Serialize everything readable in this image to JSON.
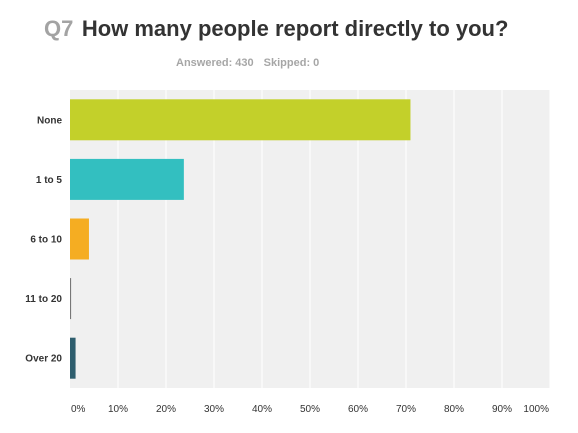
{
  "question": {
    "number": "Q7",
    "title": "How many people report directly to you?",
    "answered": "Answered: 430",
    "skipped": "Skipped: 0"
  },
  "chart_data": {
    "type": "bar",
    "orientation": "horizontal",
    "categories": [
      "None",
      "1 to 5",
      "6 to 10",
      "11 to 20",
      "Over 20"
    ],
    "values": [
      70.93,
      23.72,
      3.95,
      0.23,
      1.16
    ],
    "colors": [
      "#c3d02a",
      "#33bfc0",
      "#f5ad22",
      "#777777",
      "#2e5e6e"
    ],
    "x_ticks": [
      "0%",
      "10%",
      "20%",
      "30%",
      "40%",
      "50%",
      "60%",
      "70%",
      "80%",
      "90%",
      "100%"
    ],
    "xlim": [
      0,
      100
    ],
    "grid": true,
    "plot_background": "#f0f0f0",
    "grid_color": "#ffffff",
    "title": "",
    "xlabel": "",
    "ylabel": ""
  }
}
